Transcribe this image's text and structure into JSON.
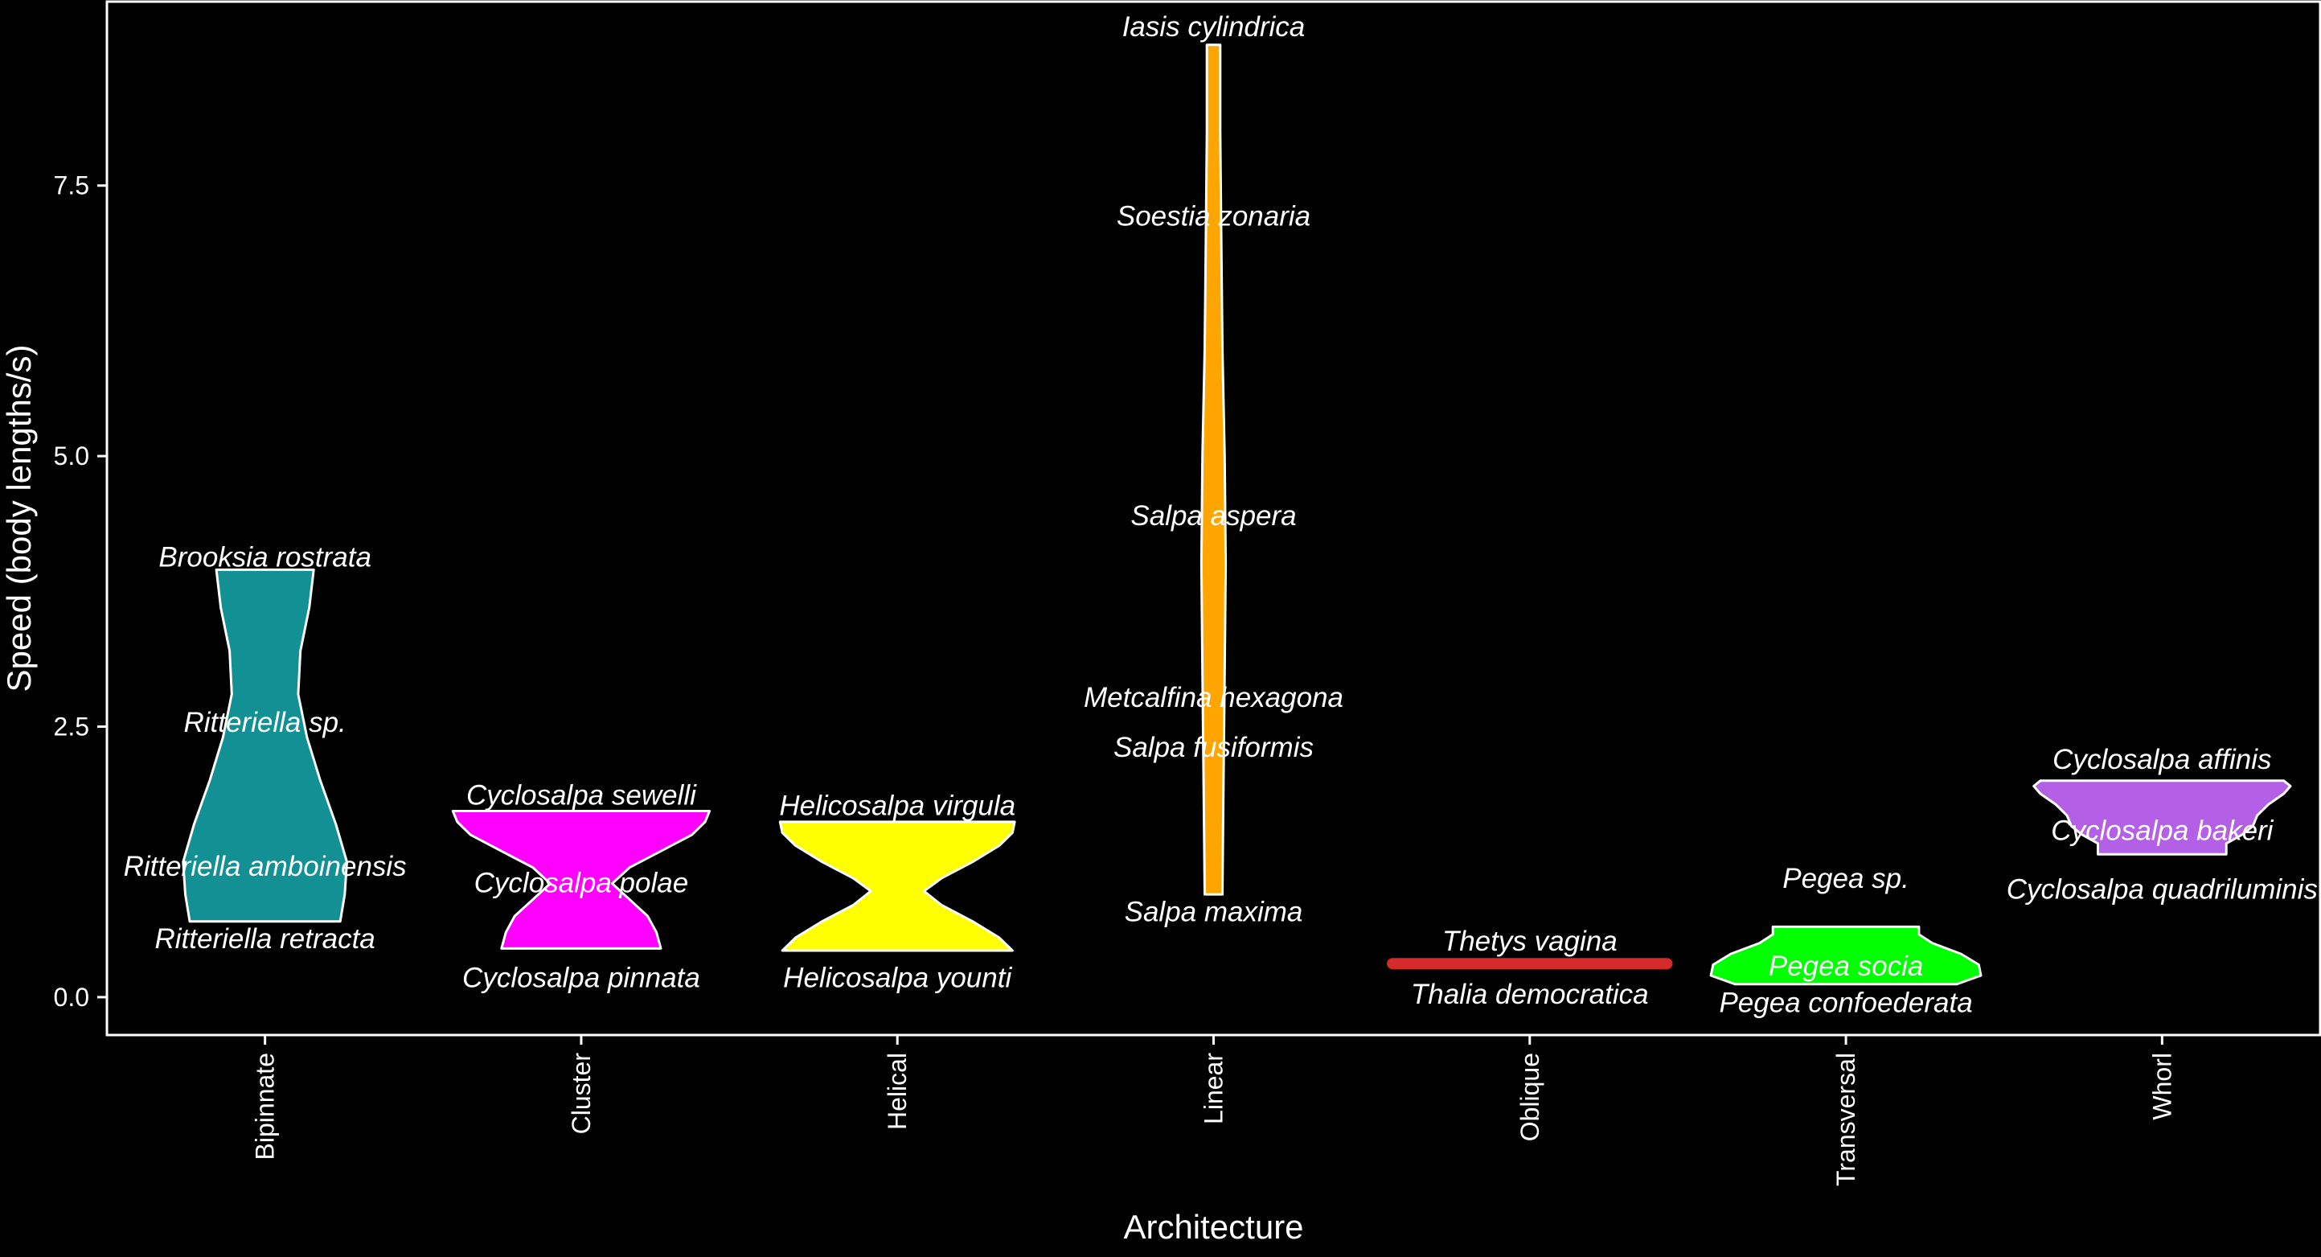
{
  "chart_data": {
    "type": "violin",
    "title": "",
    "xlabel": "Architecture",
    "ylabel": "Speed (body lengths/s)",
    "ylim": [
      -0.35,
      9.2
    ],
    "yticks": [
      0.0,
      2.5,
      5.0,
      7.5
    ],
    "ytick_labels": [
      "0.0",
      "2.5",
      "5.0",
      "7.5"
    ],
    "categories": [
      "Bipinnate",
      "Cluster",
      "Helical",
      "Linear",
      "Oblique",
      "Transversal",
      "Whorl"
    ],
    "legend": "none",
    "grid": false,
    "colors": {
      "background": "#000000",
      "axis": "#ffffff",
      "outline": "#ffffff",
      "Bipinnate": "#129094",
      "Cluster": "#ff00ff",
      "Helical": "#ffff00",
      "Linear": "#ffa500",
      "Oblique": "#d42a2a",
      "Transversal": "#00ff00",
      "Whorl": "#b35fe6"
    },
    "violins": [
      {
        "category": "Bipinnate",
        "min": 0.7,
        "max": 3.95,
        "profile": [
          [
            0.7,
            0.034
          ],
          [
            0.95,
            0.036
          ],
          [
            1.25,
            0.037
          ],
          [
            1.6,
            0.032
          ],
          [
            2.0,
            0.025
          ],
          [
            2.4,
            0.019
          ],
          [
            2.8,
            0.015
          ],
          [
            3.2,
            0.016
          ],
          [
            3.6,
            0.02
          ],
          [
            3.95,
            0.022
          ]
        ]
      },
      {
        "category": "Cluster",
        "min": 0.45,
        "max": 1.72,
        "profile": [
          [
            0.45,
            0.036
          ],
          [
            0.6,
            0.034
          ],
          [
            0.75,
            0.03
          ],
          [
            0.9,
            0.022
          ],
          [
            1.05,
            0.014
          ],
          [
            1.2,
            0.022
          ],
          [
            1.35,
            0.036
          ],
          [
            1.5,
            0.05
          ],
          [
            1.62,
            0.056
          ],
          [
            1.72,
            0.058
          ]
        ]
      },
      {
        "category": "Helical",
        "min": 0.43,
        "max": 1.62,
        "profile": [
          [
            0.43,
            0.052
          ],
          [
            0.55,
            0.046
          ],
          [
            0.7,
            0.034
          ],
          [
            0.85,
            0.02
          ],
          [
            0.98,
            0.012
          ],
          [
            1.1,
            0.02
          ],
          [
            1.25,
            0.034
          ],
          [
            1.4,
            0.046
          ],
          [
            1.52,
            0.052
          ],
          [
            1.62,
            0.053
          ]
        ]
      },
      {
        "category": "Linear",
        "min": 0.95,
        "max": 8.8,
        "profile": [
          [
            0.95,
            0.004
          ],
          [
            2.0,
            0.0045
          ],
          [
            3.0,
            0.005
          ],
          [
            4.0,
            0.0055
          ],
          [
            5.0,
            0.005
          ],
          [
            6.0,
            0.004
          ],
          [
            7.0,
            0.0035
          ],
          [
            8.0,
            0.003
          ],
          [
            8.8,
            0.003
          ]
        ]
      },
      {
        "category": "Oblique",
        "min": 0.3,
        "max": 0.32,
        "profile": [
          [
            0.3,
            0.062
          ],
          [
            0.32,
            0.062
          ]
        ]
      },
      {
        "category": "Transversal",
        "min": 0.12,
        "max": 0.65,
        "profile": [
          [
            0.12,
            0.05
          ],
          [
            0.2,
            0.061
          ],
          [
            0.3,
            0.06
          ],
          [
            0.4,
            0.052
          ],
          [
            0.5,
            0.039
          ],
          [
            0.58,
            0.033
          ],
          [
            0.65,
            0.033
          ]
        ]
      },
      {
        "category": "Whorl",
        "min": 1.32,
        "max": 2.0,
        "profile": [
          [
            1.32,
            0.029
          ],
          [
            1.42,
            0.029
          ],
          [
            1.5,
            0.036
          ],
          [
            1.58,
            0.041
          ],
          [
            1.68,
            0.043
          ],
          [
            1.78,
            0.048
          ],
          [
            1.88,
            0.055
          ],
          [
            1.95,
            0.058
          ],
          [
            2.0,
            0.055
          ]
        ]
      }
    ],
    "labels": [
      {
        "text": "Brooksia rostrata",
        "category": "Bipinnate",
        "y": 4.07
      },
      {
        "text": "Ritteriella sp.",
        "category": "Bipinnate",
        "y": 2.54
      },
      {
        "text": "Ritteriella amboinensis",
        "category": "Bipinnate",
        "y": 1.21
      },
      {
        "text": "Ritteriella retracta",
        "category": "Bipinnate",
        "y": 0.54
      },
      {
        "text": "Cyclosalpa sewelli",
        "category": "Cluster",
        "y": 1.87
      },
      {
        "text": "Cyclosalpa polae",
        "category": "Cluster",
        "y": 1.06
      },
      {
        "text": "Cyclosalpa pinnata",
        "category": "Cluster",
        "y": 0.18
      },
      {
        "text": "Helicosalpa virgula",
        "category": "Helical",
        "y": 1.77
      },
      {
        "text": "Helicosalpa younti",
        "category": "Helical",
        "y": 0.18
      },
      {
        "text": "Iasis cylindrica",
        "category": "Linear",
        "y": 8.97
      },
      {
        "text": "Soestia zonaria",
        "category": "Linear",
        "y": 7.22
      },
      {
        "text": "Salpa aspera",
        "category": "Linear",
        "y": 4.45
      },
      {
        "text": "Metcalfina hexagona",
        "category": "Linear",
        "y": 2.77
      },
      {
        "text": "Salpa fusiformis",
        "category": "Linear",
        "y": 2.31
      },
      {
        "text": "Salpa maxima",
        "category": "Linear",
        "y": 0.79
      },
      {
        "text": "Thetys vagina",
        "category": "Oblique",
        "y": 0.52
      },
      {
        "text": "Thalia democratica",
        "category": "Oblique",
        "y": 0.03
      },
      {
        "text": "Pegea sp.",
        "category": "Transversal",
        "y": 1.1
      },
      {
        "text": "Pegea socia",
        "category": "Transversal",
        "y": 0.29
      },
      {
        "text": "Pegea confoederata",
        "category": "Transversal",
        "y": -0.05
      },
      {
        "text": "Cyclosalpa affinis",
        "category": "Whorl",
        "y": 2.2
      },
      {
        "text": "Cyclosalpa bakeri",
        "category": "Whorl",
        "y": 1.54
      },
      {
        "text": "Cyclosalpa quadriluminis",
        "category": "Whorl",
        "y": 1.0
      }
    ]
  }
}
